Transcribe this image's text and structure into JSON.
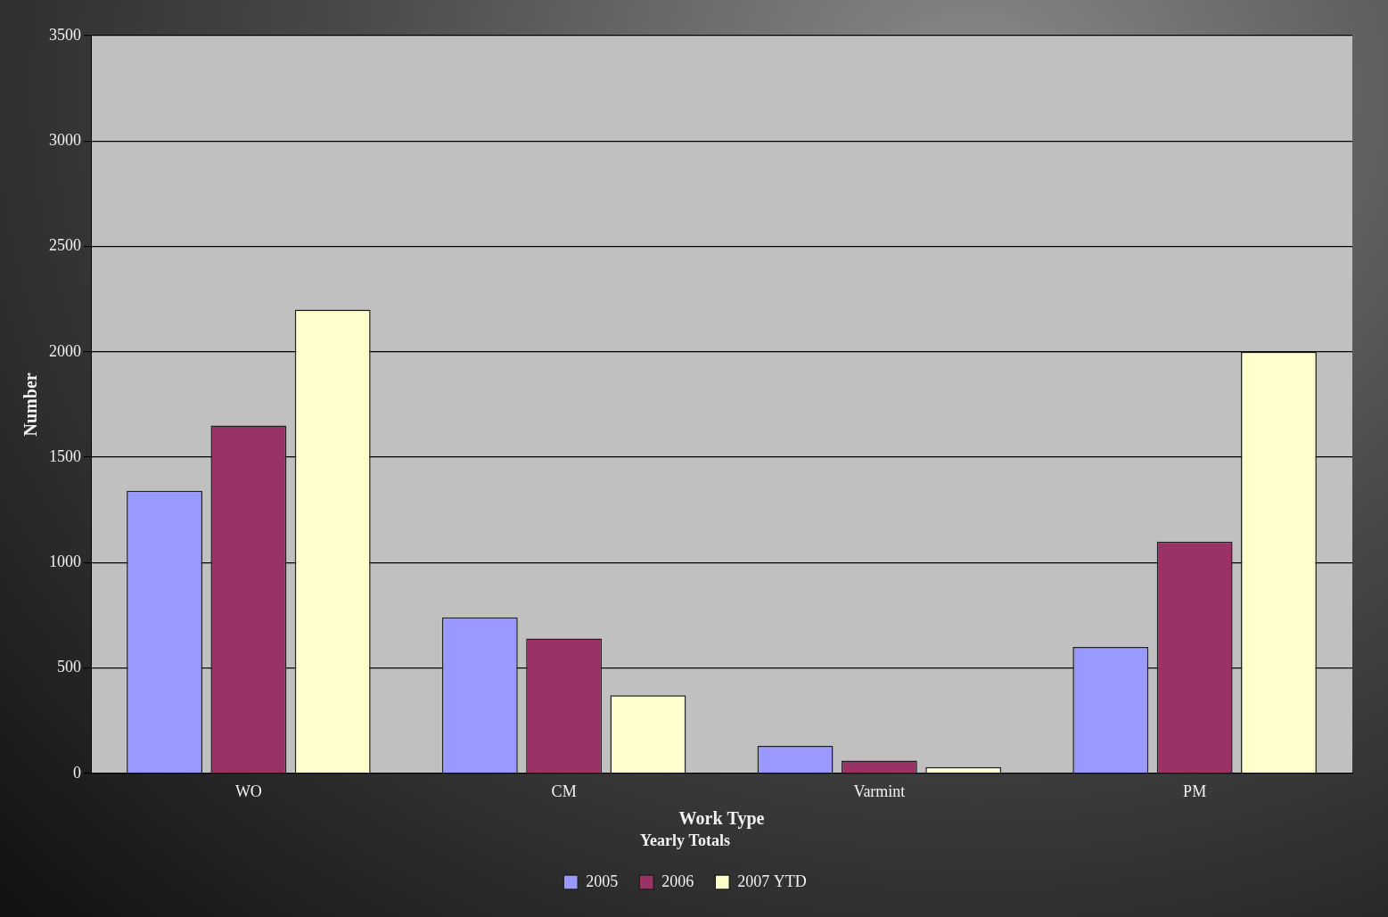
{
  "chart_data": {
    "type": "bar",
    "x_label": "Work Type",
    "y_label": "Number",
    "legend_title": "Yearly Totals",
    "categories": [
      "WO",
      "CM",
      "Varmint",
      "PM"
    ],
    "series": [
      {
        "name": "2005",
        "color": "#9999ff",
        "values": [
          1340,
          740,
          130,
          600
        ]
      },
      {
        "name": "2006",
        "color": "#993366",
        "values": [
          1650,
          640,
          60,
          1100
        ]
      },
      {
        "name": "2007 YTD",
        "color": "#ffffcc",
        "values": [
          2200,
          370,
          30,
          2000
        ]
      }
    ],
    "ylim": [
      0,
      3500
    ],
    "yticks": [
      0,
      500,
      1000,
      1500,
      2000,
      2500,
      3000,
      3500
    ],
    "grid": true,
    "legend": "bottom"
  }
}
